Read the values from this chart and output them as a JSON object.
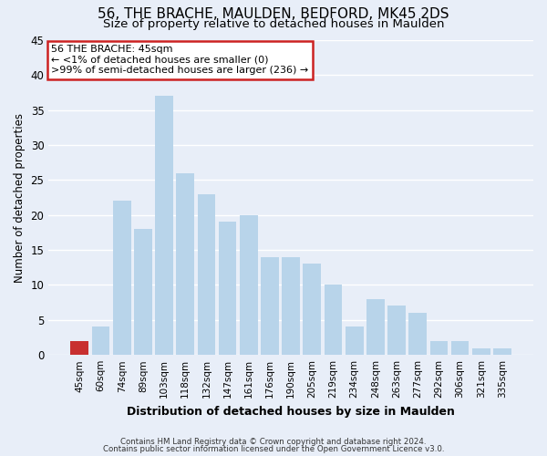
{
  "title": "56, THE BRACHE, MAULDEN, BEDFORD, MK45 2DS",
  "subtitle": "Size of property relative to detached houses in Maulden",
  "xlabel": "Distribution of detached houses by size in Maulden",
  "ylabel": "Number of detached properties",
  "bar_labels": [
    "45sqm",
    "60sqm",
    "74sqm",
    "89sqm",
    "103sqm",
    "118sqm",
    "132sqm",
    "147sqm",
    "161sqm",
    "176sqm",
    "190sqm",
    "205sqm",
    "219sqm",
    "234sqm",
    "248sqm",
    "263sqm",
    "277sqm",
    "292sqm",
    "306sqm",
    "321sqm",
    "335sqm"
  ],
  "bar_values": [
    2,
    4,
    22,
    18,
    37,
    26,
    23,
    19,
    20,
    14,
    14,
    13,
    10,
    4,
    8,
    7,
    6,
    2,
    2,
    1,
    1
  ],
  "highlight_index": 0,
  "bar_color": "#b8d4ea",
  "highlight_color": "#c83030",
  "ylim": [
    0,
    45
  ],
  "yticks": [
    0,
    5,
    10,
    15,
    20,
    25,
    30,
    35,
    40,
    45
  ],
  "annotation_title": "56 THE BRACHE: 45sqm",
  "annotation_line1": "← <1% of detached houses are smaller (0)",
  "annotation_line2": ">99% of semi-detached houses are larger (236) →",
  "footer1": "Contains HM Land Registry data © Crown copyright and database right 2024.",
  "footer2": "Contains public sector information licensed under the Open Government Licence v3.0.",
  "bg_color": "#e8eef8",
  "grid_color": "#ffffff",
  "title_fontsize": 11,
  "subtitle_fontsize": 9.5,
  "annotation_box_edge_color": "#cc2222",
  "annotation_box_face_color": "#ffffff"
}
